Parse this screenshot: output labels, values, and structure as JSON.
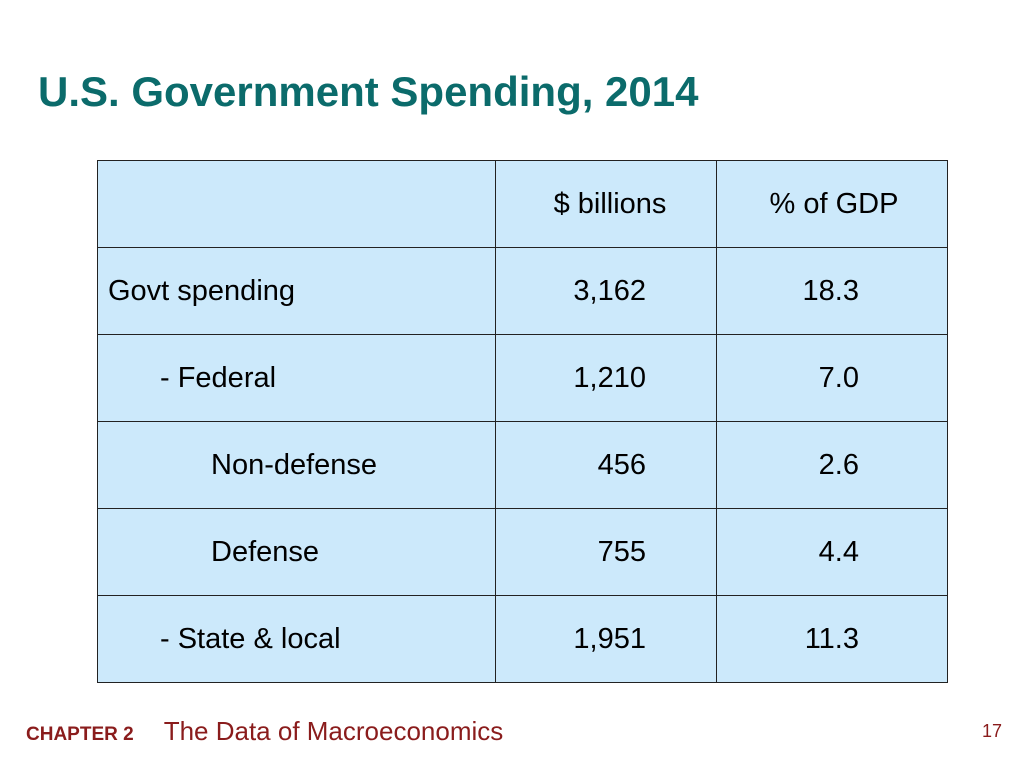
{
  "slide": {
    "title": "U.S. Government Spending, 2014"
  },
  "table": {
    "headers": [
      "",
      "$ billions",
      "% of GDP"
    ],
    "rows": [
      {
        "label": "Govt spending",
        "indent": 0,
        "billions": "3,162",
        "pct_gdp": "18.3"
      },
      {
        "label": "- Federal",
        "indent": 1,
        "billions": "1,210",
        "pct_gdp": "7.0"
      },
      {
        "label": "Non-defense",
        "indent": 2,
        "billions": "456",
        "pct_gdp": "2.6"
      },
      {
        "label": "Defense",
        "indent": 2,
        "billions": "755",
        "pct_gdp": "4.4"
      },
      {
        "label": "- State & local",
        "indent": 1,
        "billions": "1,951",
        "pct_gdp": "11.3"
      }
    ]
  },
  "footer": {
    "chapter": "CHAPTER 2",
    "book_title": "The Data of Macroeconomics",
    "page_number": "17"
  },
  "colors": {
    "title": "#0b6b6b",
    "table_fill": "#cce9fb",
    "footer": "#8a1c1c"
  }
}
